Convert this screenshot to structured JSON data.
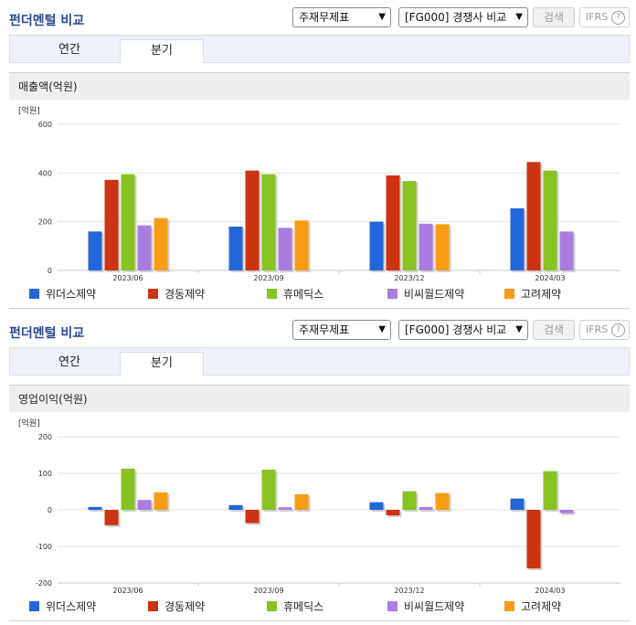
{
  "sections": [
    {
      "title": "펀더멘털 비교",
      "select_statement": "주재무제표",
      "select_compare": "[FG000] 경쟁사 비교",
      "search_label": "검색",
      "ifrs_label": "IFRS",
      "help_glyph": "?",
      "tab_annual": "연간",
      "tab_quarterly": "분기",
      "metric_label": "매출액(억원)"
    },
    {
      "title": "펀더멘털 비교",
      "select_statement": "주재무제표",
      "select_compare": "[FG000] 경쟁사 비교",
      "search_label": "검색",
      "ifrs_label": "IFRS",
      "help_glyph": "?",
      "tab_annual": "연간",
      "tab_quarterly": "분기",
      "metric_label": "영업이익(억원)"
    }
  ],
  "chart_data": [
    {
      "type": "bar",
      "ylabel": "[억원]",
      "ylim": [
        0,
        600
      ],
      "yticks": [
        0,
        200,
        400,
        600
      ],
      "grid": true,
      "legend_position": "bottom",
      "categories": [
        "2023/06",
        "2023/09",
        "2023/12",
        "2024/03"
      ],
      "series": [
        {
          "name": "위더스제약",
          "color": "#2366d9",
          "values": [
            160,
            180,
            200,
            255
          ]
        },
        {
          "name": "경동제약",
          "color": "#cc3311",
          "values": [
            372,
            410,
            390,
            445
          ]
        },
        {
          "name": "휴메딕스",
          "color": "#88c324",
          "values": [
            395,
            395,
            367,
            410
          ]
        },
        {
          "name": "비씨월드제약",
          "color": "#a97de0",
          "values": [
            185,
            175,
            192,
            160
          ]
        },
        {
          "name": "고려제약",
          "color": "#f79c14",
          "values": [
            215,
            205,
            190,
            0
          ]
        }
      ]
    },
    {
      "type": "bar",
      "ylabel": "[억원]",
      "ylim": [
        -200,
        200
      ],
      "yticks": [
        -200,
        -100,
        0,
        100,
        200
      ],
      "grid": true,
      "legend_position": "bottom",
      "categories": [
        "2023/06",
        "2023/09",
        "2023/12",
        "2024/03"
      ],
      "series": [
        {
          "name": "위더스제약",
          "color": "#2366d9",
          "values": [
            8,
            13,
            21,
            31
          ]
        },
        {
          "name": "경동제약",
          "color": "#cc3311",
          "values": [
            -42,
            -36,
            -15,
            -160
          ]
        },
        {
          "name": "휴메딕스",
          "color": "#88c324",
          "values": [
            113,
            110,
            51,
            106
          ]
        },
        {
          "name": "비씨월드제약",
          "color": "#a97de0",
          "values": [
            27,
            7,
            8,
            -9
          ]
        },
        {
          "name": "고려제약",
          "color": "#f79c14",
          "values": [
            48,
            43,
            46,
            0
          ]
        }
      ]
    }
  ]
}
